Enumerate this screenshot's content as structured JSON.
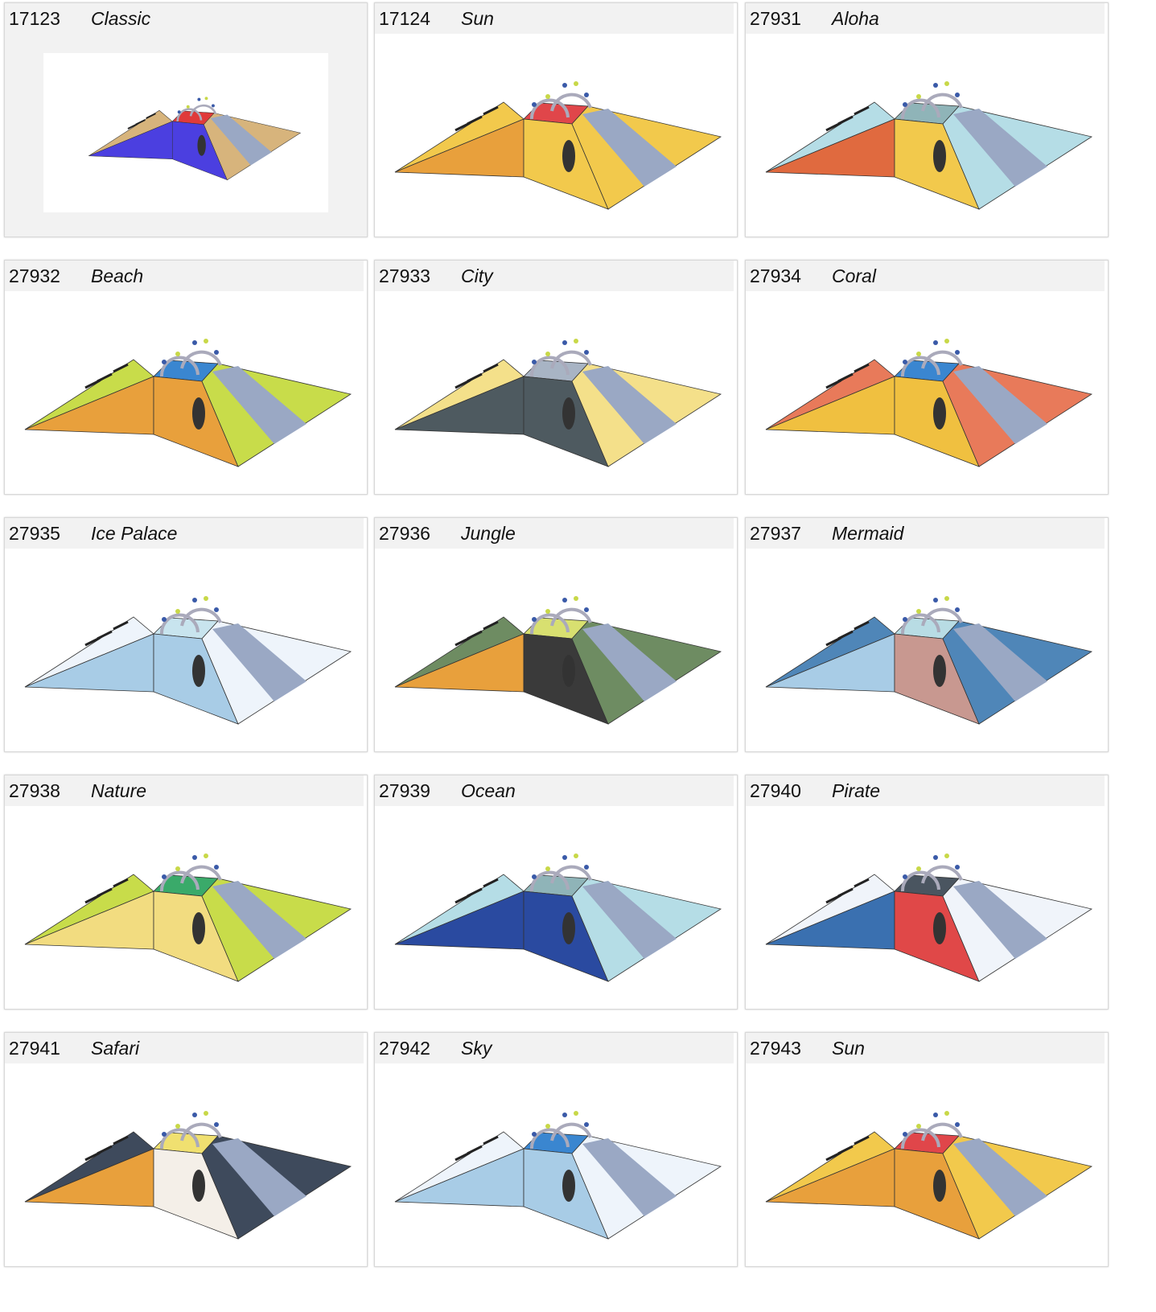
{
  "products": [
    {
      "number": "17123",
      "name": "Classic"
    },
    {
      "number": "17124",
      "name": "Sun"
    },
    {
      "number": "27931",
      "name": "Aloha"
    },
    {
      "number": "27932",
      "name": "Beach"
    },
    {
      "number": "27933",
      "name": "City"
    },
    {
      "number": "27934",
      "name": "Coral"
    },
    {
      "number": "27935",
      "name": "Ice Palace"
    },
    {
      "number": "27936",
      "name": "Jungle"
    },
    {
      "number": "27937",
      "name": "Mermaid"
    },
    {
      "number": "27938",
      "name": "Nature"
    },
    {
      "number": "27939",
      "name": "Ocean"
    },
    {
      "number": "27940",
      "name": "Pirate"
    },
    {
      "number": "27941",
      "name": "Safari"
    },
    {
      "number": "27942",
      "name": "Sky"
    },
    {
      "number": "27943",
      "name": "Sun"
    }
  ]
}
